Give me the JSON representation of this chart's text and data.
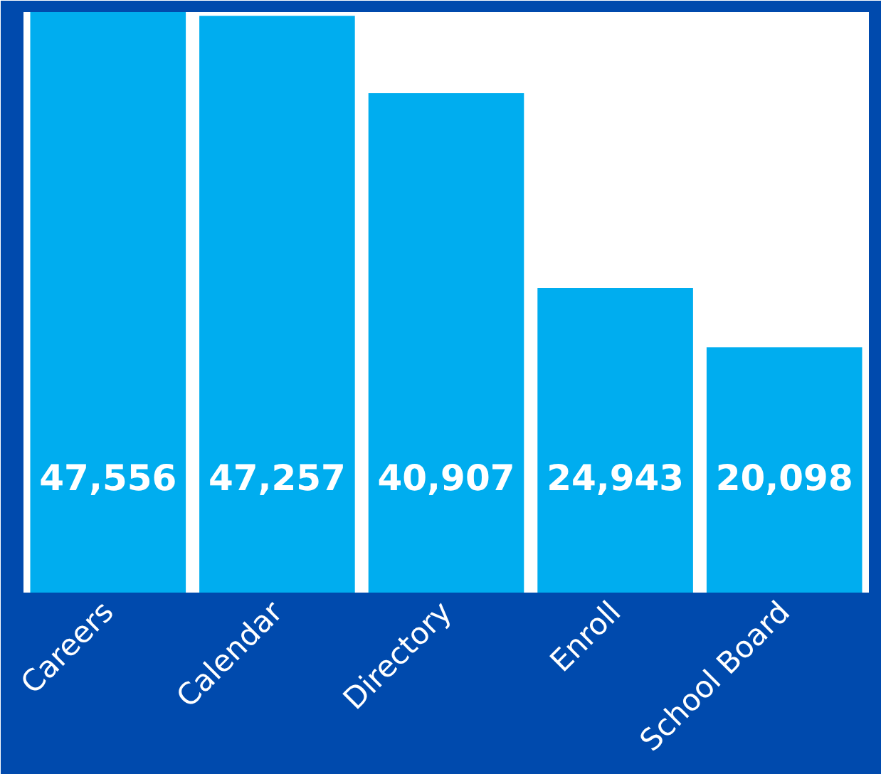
{
  "chart_data": {
    "type": "bar",
    "categories": [
      "Careers",
      "Calendar",
      "Directory",
      "Enroll",
      "School Board"
    ],
    "values": [
      47556,
      47257,
      40907,
      24943,
      20098
    ],
    "value_labels": [
      "47,556",
      "47,257",
      "40,907",
      "24,943",
      "20,098"
    ],
    "color": "#00adef"
  }
}
